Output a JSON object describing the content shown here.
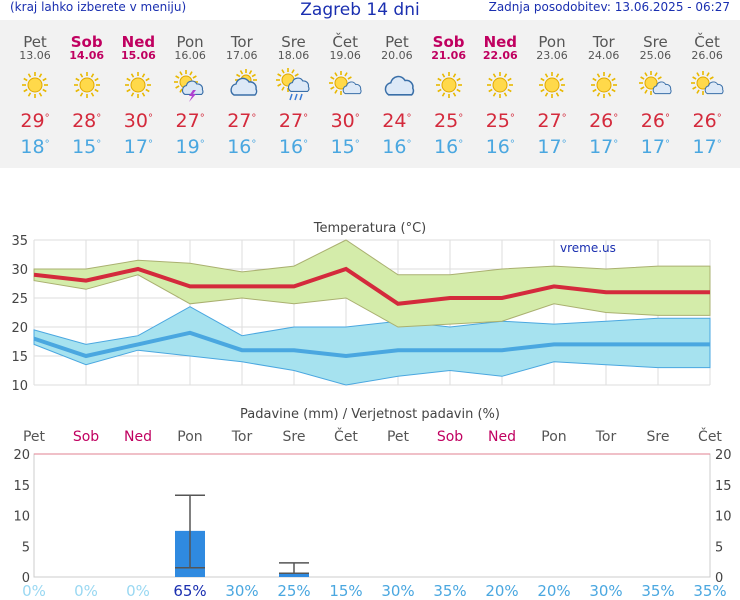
{
  "header": {
    "left_hint": "(kraj lahko izberete v meniju)",
    "title": "Zagreb 14 dni",
    "updated": "Zadnja posodobitev: 13.06.2025 - 06:27"
  },
  "days": [
    {
      "name": "Pet",
      "date": "13.06",
      "weekend": false,
      "icon": "sun-icon",
      "hi": "29°",
      "lo": "18°"
    },
    {
      "name": "Sob",
      "date": "14.06",
      "weekend": true,
      "icon": "sun-icon",
      "hi": "28°",
      "lo": "15°"
    },
    {
      "name": "Ned",
      "date": "15.06",
      "weekend": true,
      "icon": "sun-icon",
      "hi": "30°",
      "lo": "17°"
    },
    {
      "name": "Pon",
      "date": "16.06",
      "weekend": false,
      "icon": "sun-thunder-icon",
      "hi": "27°",
      "lo": "19°"
    },
    {
      "name": "Tor",
      "date": "17.06",
      "weekend": false,
      "icon": "sun-cloud-icon",
      "hi": "27°",
      "lo": "16°"
    },
    {
      "name": "Sre",
      "date": "18.06",
      "weekend": false,
      "icon": "sun-rain-icon",
      "hi": "27°",
      "lo": "16°"
    },
    {
      "name": "Čet",
      "date": "19.06",
      "weekend": false,
      "icon": "sun-small-cloud-icon",
      "hi": "30°",
      "lo": "15°"
    },
    {
      "name": "Pet",
      "date": "20.06",
      "weekend": false,
      "icon": "cloud-icon",
      "hi": "24°",
      "lo": "16°"
    },
    {
      "name": "Sob",
      "date": "21.06",
      "weekend": true,
      "icon": "sun-icon",
      "hi": "25°",
      "lo": "16°"
    },
    {
      "name": "Ned",
      "date": "22.06",
      "weekend": true,
      "icon": "sun-icon",
      "hi": "25°",
      "lo": "16°"
    },
    {
      "name": "Pon",
      "date": "23.06",
      "weekend": false,
      "icon": "sun-icon",
      "hi": "27°",
      "lo": "17°"
    },
    {
      "name": "Tor",
      "date": "24.06",
      "weekend": false,
      "icon": "sun-icon",
      "hi": "26°",
      "lo": "17°"
    },
    {
      "name": "Sre",
      "date": "25.06",
      "weekend": false,
      "icon": "sun-small-cloud-icon",
      "hi": "26°",
      "lo": "17°"
    },
    {
      "name": "Čet",
      "date": "26.06",
      "weekend": false,
      "icon": "sun-small-cloud-icon",
      "hi": "26°",
      "lo": "17°"
    }
  ],
  "colors": {
    "max": "#d42a3c",
    "min": "#4aa7e0",
    "max_band": "#d4ecaa",
    "min_band": "#a6e2ef",
    "bar": "#2f8ae0",
    "weekend": "#c00060"
  },
  "chart_data": [
    {
      "type": "line",
      "title": "Temperatura (°C)",
      "watermark": "vreme.us",
      "x": [
        "13.06",
        "14.06",
        "15.06",
        "16.06",
        "17.06",
        "18.06",
        "19.06",
        "20.06",
        "21.06",
        "22.06",
        "23.06",
        "24.06",
        "25.06",
        "26.06"
      ],
      "series": [
        {
          "values": [
            29,
            28,
            30,
            27,
            27,
            27,
            30,
            24,
            25,
            25,
            27,
            26,
            26,
            26
          ],
          "band_low": [
            28,
            26.5,
            29,
            24,
            25,
            24,
            25,
            20,
            20.5,
            21,
            24,
            22.5,
            22,
            22
          ],
          "band_high": [
            30,
            30,
            31.5,
            31,
            29.5,
            30.5,
            35,
            29,
            29,
            30,
            30.5,
            30,
            30.5,
            30.5
          ]
        },
        {
          "values": [
            18,
            15,
            17,
            19,
            16,
            16,
            15,
            16,
            16,
            16,
            17,
            17,
            17,
            17
          ],
          "band_low": [
            17,
            13.5,
            16,
            15,
            14,
            12.5,
            10,
            11.5,
            12.5,
            11.5,
            14,
            13.5,
            13,
            13
          ],
          "band_high": [
            19.5,
            17,
            18.5,
            23.5,
            18.5,
            20,
            20,
            21,
            20,
            21,
            20.5,
            21,
            21.5,
            21.5
          ]
        }
      ],
      "ylim": [
        10,
        35
      ],
      "yticks": [
        10,
        15,
        20,
        25,
        30,
        35
      ],
      "grid": true
    },
    {
      "type": "bar",
      "title": "Padavine (mm) / Verjetnost padavin (%)",
      "categories": [
        "Pet",
        "Sob",
        "Ned",
        "Pon",
        "Tor",
        "Sre",
        "Čet",
        "Pet",
        "Sob",
        "Ned",
        "Pon",
        "Tor",
        "Sre",
        "Čet"
      ],
      "weekend": [
        false,
        true,
        true,
        false,
        false,
        false,
        false,
        false,
        true,
        true,
        false,
        false,
        false,
        false
      ],
      "values": [
        0,
        0,
        0,
        7.5,
        0,
        0.6,
        0,
        0,
        0,
        0,
        0,
        0,
        0,
        0
      ],
      "range_low": [
        null,
        null,
        null,
        1.5,
        null,
        0.6,
        null,
        null,
        null,
        null,
        null,
        null,
        null,
        null
      ],
      "range_high": [
        null,
        null,
        null,
        13.3,
        null,
        2.3,
        null,
        null,
        null,
        null,
        null,
        null,
        null,
        null
      ],
      "probability": [
        "0%",
        "0%",
        "0%",
        "65%",
        "30%",
        "25%",
        "15%",
        "30%",
        "35%",
        "20%",
        "20%",
        "30%",
        "35%",
        "35%"
      ],
      "ylim": [
        0,
        20
      ],
      "yticks": [
        0,
        5,
        10,
        15,
        20
      ]
    }
  ]
}
